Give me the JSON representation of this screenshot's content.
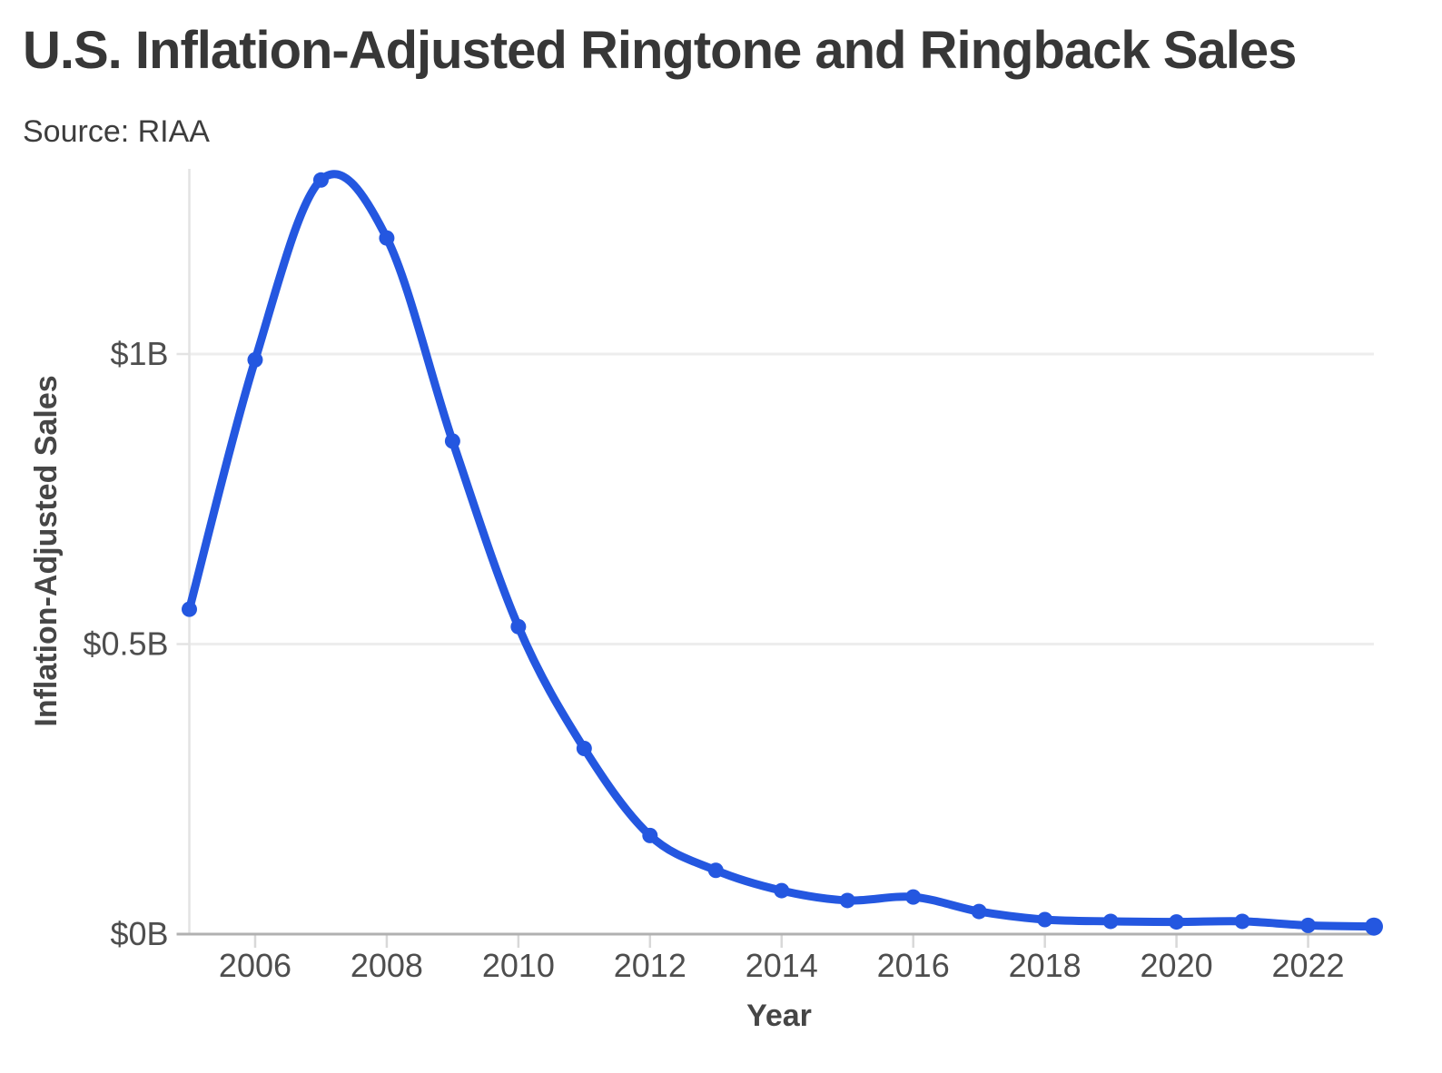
{
  "header": {
    "title": "U.S. Inflation-Adjusted Ringtone and Ringback Sales",
    "source": "Source: RIAA"
  },
  "colors": {
    "line": "#2457e0",
    "marker": "#2457e0",
    "grid": "#ededed",
    "x_axis_line": "#b1b1b1",
    "y_axis_line": "#e3e3e3",
    "tick_mark": "#d8d8d8",
    "title_text": "#373737",
    "tick_text": "#4e4e4e",
    "axis_title_text": "#464646"
  },
  "chart_data": {
    "type": "line",
    "title": "U.S. Inflation-Adjusted Ringtone and Ringback Sales",
    "source": "Source: RIAA",
    "xlabel": "Year",
    "ylabel": "Inflation-Adjusted Sales",
    "x": [
      2005,
      2006,
      2007,
      2008,
      2009,
      2010,
      2011,
      2012,
      2013,
      2014,
      2015,
      2016,
      2017,
      2018,
      2019,
      2020,
      2021,
      2022,
      2023
    ],
    "values": [
      0.56,
      0.99,
      1.3,
      1.2,
      0.85,
      0.53,
      0.32,
      0.17,
      0.11,
      0.075,
      0.058,
      0.064,
      0.039,
      0.025,
      0.022,
      0.021,
      0.022,
      0.015,
      0.013
    ],
    "series": [
      {
        "name": "Inflation-Adjusted Sales ($B)",
        "values": [
          0.56,
          0.99,
          1.3,
          1.2,
          0.85,
          0.53,
          0.32,
          0.17,
          0.11,
          0.075,
          0.058,
          0.064,
          0.039,
          0.025,
          0.022,
          0.021,
          0.022,
          0.015,
          0.013
        ]
      }
    ],
    "xticks": [
      2006,
      2008,
      2010,
      2012,
      2014,
      2016,
      2018,
      2020,
      2022
    ],
    "yticks": [
      {
        "value": 0,
        "label": "$0B"
      },
      {
        "value": 0.5,
        "label": "$0.5B"
      },
      {
        "value": 1,
        "label": "$1B"
      }
    ],
    "xlim": [
      2005,
      2023
    ],
    "ylim": [
      0,
      1.32
    ],
    "grid": "horizontal-only",
    "legend": "none",
    "markers": true,
    "smooth": true
  }
}
